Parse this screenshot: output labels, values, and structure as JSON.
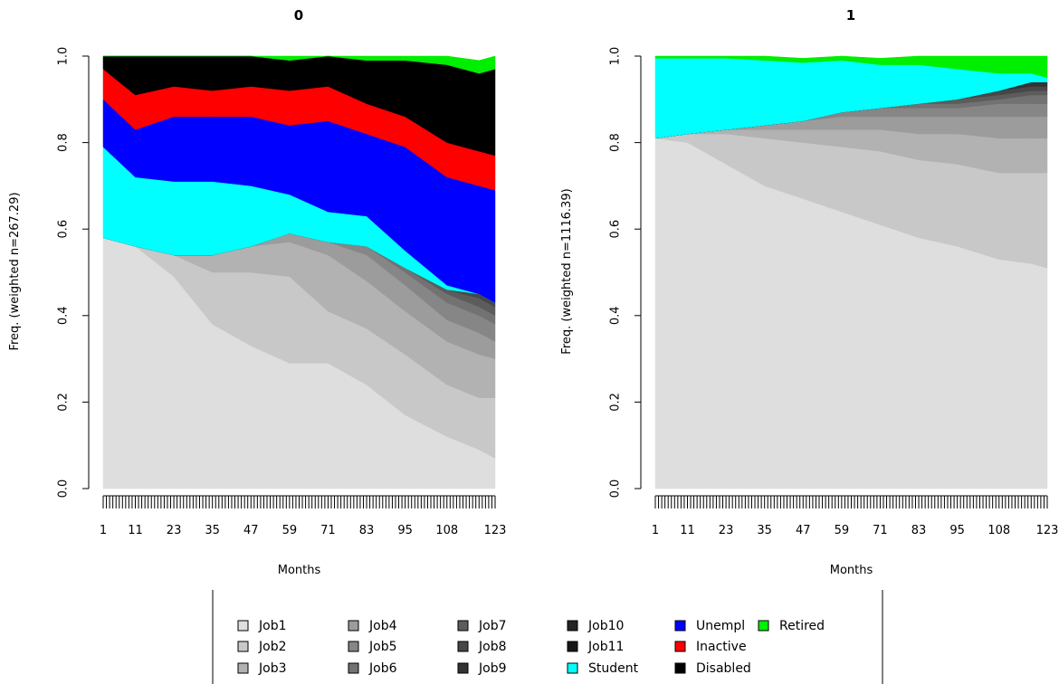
{
  "x_axis_tick_labels": [
    "1",
    "11",
    "23",
    "35",
    "47",
    "59",
    "71",
    "83",
    "95",
    "108",
    "123"
  ],
  "y_axis_tick_labels": [
    "0.0",
    "0.2",
    "0.4",
    "0.6",
    "0.8",
    "1.0"
  ],
  "state_colors": {
    "Job1": "#dedede",
    "Job2": "#c8c8c8",
    "Job3": "#b2b2b2",
    "Job4": "#9c9c9c",
    "Job5": "#868686",
    "Job6": "#727272",
    "Job7": "#5c5c5c",
    "Job8": "#474747",
    "Job9": "#333333",
    "Job10": "#252525",
    "Job11": "#161616",
    "Student": "#00ffff",
    "Unempl": "#0000ff",
    "Inactive": "#ff0000",
    "Disabled": "#000000",
    "Retired": "#00ee00"
  },
  "legend": {
    "columns": [
      [
        "Job1",
        "Job2",
        "Job3"
      ],
      [
        "Job4",
        "Job5",
        "Job6"
      ],
      [
        "Job7",
        "Job8",
        "Job9"
      ],
      [
        "Job10",
        "Job11",
        "Student"
      ],
      [
        "Unempl",
        "Inactive",
        "Disabled"
      ],
      [
        "Retired"
      ]
    ]
  },
  "chart_data": [
    {
      "type": "area",
      "title": "0",
      "xlabel": "Months",
      "ylabel": "Freq. (weighted n=267.29)",
      "ylim": [
        0,
        1
      ],
      "x": [
        1,
        11,
        23,
        35,
        47,
        59,
        71,
        83,
        95,
        108,
        118,
        123
      ],
      "series": [
        {
          "name": "Job1",
          "values": [
            0.58,
            0.56,
            0.49,
            0.38,
            0.33,
            0.29,
            0.29,
            0.24,
            0.17,
            0.12,
            0.09,
            0.07
          ]
        },
        {
          "name": "Job2",
          "values": [
            0.0,
            0.0,
            0.05,
            0.12,
            0.17,
            0.2,
            0.12,
            0.13,
            0.14,
            0.12,
            0.12,
            0.14
          ]
        },
        {
          "name": "Job3",
          "values": [
            0.0,
            0.0,
            0.0,
            0.04,
            0.06,
            0.08,
            0.13,
            0.11,
            0.1,
            0.1,
            0.1,
            0.09
          ]
        },
        {
          "name": "Job4",
          "values": [
            0.0,
            0.0,
            0.0,
            0.0,
            0.0,
            0.02,
            0.03,
            0.06,
            0.06,
            0.05,
            0.05,
            0.04
          ]
        },
        {
          "name": "Job5",
          "values": [
            0.0,
            0.0,
            0.0,
            0.0,
            0.0,
            0.0,
            0.0,
            0.02,
            0.03,
            0.04,
            0.04,
            0.04
          ]
        },
        {
          "name": "Job6",
          "values": [
            0.0,
            0.0,
            0.0,
            0.0,
            0.0,
            0.0,
            0.0,
            0.0,
            0.01,
            0.02,
            0.02,
            0.02
          ]
        },
        {
          "name": "Job7",
          "values": [
            0.0,
            0.0,
            0.0,
            0.0,
            0.0,
            0.0,
            0.0,
            0.0,
            0.0,
            0.01,
            0.02,
            0.02
          ]
        },
        {
          "name": "Job8",
          "values": [
            0.0,
            0.0,
            0.0,
            0.0,
            0.0,
            0.0,
            0.0,
            0.0,
            0.0,
            0.0,
            0.01,
            0.01
          ]
        },
        {
          "name": "Job9",
          "values": [
            0.0,
            0.0,
            0.0,
            0.0,
            0.0,
            0.0,
            0.0,
            0.0,
            0.0,
            0.0,
            0.0,
            0.0
          ]
        },
        {
          "name": "Job10",
          "values": [
            0.0,
            0.0,
            0.0,
            0.0,
            0.0,
            0.0,
            0.0,
            0.0,
            0.0,
            0.0,
            0.0,
            0.0
          ]
        },
        {
          "name": "Job11",
          "values": [
            0.0,
            0.0,
            0.0,
            0.0,
            0.0,
            0.0,
            0.0,
            0.0,
            0.0,
            0.0,
            0.0,
            0.0
          ]
        },
        {
          "name": "Student",
          "values": [
            0.21,
            0.16,
            0.17,
            0.17,
            0.14,
            0.09,
            0.07,
            0.07,
            0.04,
            0.01,
            0.0,
            0.0
          ]
        },
        {
          "name": "Unempl",
          "values": [
            0.11,
            0.11,
            0.15,
            0.15,
            0.16,
            0.16,
            0.21,
            0.19,
            0.24,
            0.25,
            0.25,
            0.26
          ]
        },
        {
          "name": "Inactive",
          "values": [
            0.07,
            0.08,
            0.07,
            0.06,
            0.07,
            0.08,
            0.08,
            0.07,
            0.07,
            0.08,
            0.08,
            0.08
          ]
        },
        {
          "name": "Disabled",
          "values": [
            0.03,
            0.09,
            0.07,
            0.08,
            0.07,
            0.07,
            0.09,
            0.1,
            0.13,
            0.18,
            0.18,
            0.2
          ]
        },
        {
          "name": "Retired",
          "values": [
            0.0,
            0.0,
            0.0,
            0.0,
            0.0,
            0.01,
            0.01,
            0.01,
            0.02,
            0.02,
            0.03,
            0.03
          ]
        }
      ]
    },
    {
      "type": "area",
      "title": "1",
      "xlabel": "Months",
      "ylabel": "Freq. (weighted n=1116.39)",
      "ylim": [
        0,
        1
      ],
      "x": [
        1,
        11,
        23,
        35,
        47,
        59,
        71,
        83,
        95,
        108,
        118,
        123
      ],
      "series": [
        {
          "name": "Job1",
          "values": [
            0.81,
            0.8,
            0.75,
            0.7,
            0.67,
            0.64,
            0.61,
            0.58,
            0.56,
            0.53,
            0.52,
            0.51
          ]
        },
        {
          "name": "Job2",
          "values": [
            0.0,
            0.02,
            0.07,
            0.11,
            0.13,
            0.15,
            0.17,
            0.18,
            0.19,
            0.2,
            0.21,
            0.22
          ]
        },
        {
          "name": "Job3",
          "values": [
            0.0,
            0.0,
            0.01,
            0.02,
            0.03,
            0.04,
            0.05,
            0.06,
            0.07,
            0.08,
            0.08,
            0.08
          ]
        },
        {
          "name": "Job4",
          "values": [
            0.0,
            0.0,
            0.0,
            0.01,
            0.02,
            0.03,
            0.03,
            0.04,
            0.04,
            0.05,
            0.05,
            0.05
          ]
        },
        {
          "name": "Job5",
          "values": [
            0.0,
            0.0,
            0.0,
            0.0,
            0.0,
            0.01,
            0.02,
            0.02,
            0.02,
            0.03,
            0.03,
            0.03
          ]
        },
        {
          "name": "Job6",
          "values": [
            0.0,
            0.0,
            0.0,
            0.0,
            0.0,
            0.0,
            0.0,
            0.01,
            0.01,
            0.01,
            0.02,
            0.02
          ]
        },
        {
          "name": "Job7",
          "values": [
            0.0,
            0.0,
            0.0,
            0.0,
            0.0,
            0.0,
            0.0,
            0.0,
            0.01,
            0.01,
            0.01,
            0.01
          ]
        },
        {
          "name": "Job8",
          "values": [
            0.0,
            0.0,
            0.0,
            0.0,
            0.0,
            0.0,
            0.0,
            0.0,
            0.0,
            0.01,
            0.01,
            0.01
          ]
        },
        {
          "name": "Job9",
          "values": [
            0.0,
            0.0,
            0.0,
            0.0,
            0.0,
            0.0,
            0.0,
            0.0,
            0.0,
            0.0,
            0.01,
            0.01
          ]
        },
        {
          "name": "Job10",
          "values": [
            0.0,
            0.0,
            0.0,
            0.0,
            0.0,
            0.0,
            0.0,
            0.0,
            0.0,
            0.0,
            0.0,
            0.0
          ]
        },
        {
          "name": "Job11",
          "values": [
            0.0,
            0.0,
            0.0,
            0.0,
            0.0,
            0.0,
            0.0,
            0.0,
            0.0,
            0.0,
            0.0,
            0.0
          ]
        },
        {
          "name": "Student",
          "values": [
            0.185,
            0.175,
            0.165,
            0.15,
            0.135,
            0.12,
            0.1,
            0.09,
            0.07,
            0.04,
            0.02,
            0.01
          ]
        },
        {
          "name": "Unempl",
          "values": [
            0.0,
            0.0,
            0.0,
            0.0,
            0.0,
            0.0,
            0.0,
            0.0,
            0.0,
            0.0,
            0.0,
            0.0
          ]
        },
        {
          "name": "Inactive",
          "values": [
            0.0,
            0.0,
            0.0,
            0.0,
            0.0,
            0.0,
            0.0,
            0.0,
            0.0,
            0.0,
            0.0,
            0.0
          ]
        },
        {
          "name": "Disabled",
          "values": [
            0.0,
            0.0,
            0.0,
            0.0,
            0.0,
            0.0,
            0.0,
            0.0,
            0.0,
            0.0,
            0.0,
            0.0
          ]
        },
        {
          "name": "Retired",
          "values": [
            0.005,
            0.005,
            0.005,
            0.01,
            0.01,
            0.01,
            0.015,
            0.02,
            0.03,
            0.04,
            0.05,
            0.05
          ]
        }
      ]
    }
  ]
}
